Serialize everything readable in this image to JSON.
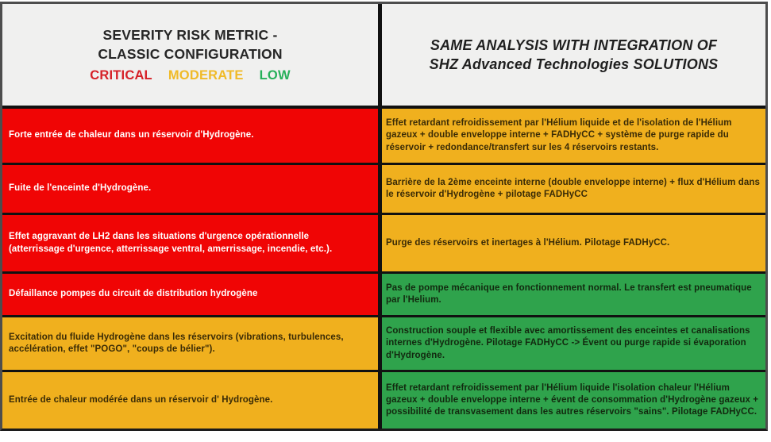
{
  "colors": {
    "critical": "#f00505",
    "moderate": "#f0b01e",
    "low": "#2fa34c"
  },
  "header": {
    "left": {
      "title_line1": "SEVERITY RISK METRIC  -",
      "title_line2": "CLASSIC CONFIGURATION",
      "legend": [
        {
          "label": "CRITICAL",
          "color": "#d62027"
        },
        {
          "label": "MODERATE",
          "color": "#f0ba28"
        },
        {
          "label": "LOW",
          "color": "#27b05a"
        }
      ]
    },
    "right": {
      "title_line1": "SAME ANALYSIS WITH INTEGRATION OF",
      "title_line2": "SHZ Advanced Technologies SOLUTIONS"
    }
  },
  "rows": [
    {
      "risk": "Forte entrée de chaleur dans un réservoir d'Hydrogène.",
      "risk_severity": "critical",
      "solution": "Effet retardant refroidissement par l'Hélium liquide et de l'isolation de l'Hélium gazeux + double enveloppe interne + FADHyCC + système de purge rapide du réservoir + redondance/transfert sur les 4 réservoirs restants.",
      "solution_severity": "moderate"
    },
    {
      "risk": "Fuite de l'enceinte d'Hydrogène.",
      "risk_severity": "critical",
      "solution": "Barrière de la 2ème enceinte interne (double enveloppe interne) +  flux d'Hélium dans le réservoir d'Hydrogène + pilotage FADHyCC",
      "solution_severity": "moderate"
    },
    {
      "risk": "Effet aggravant de LH2 dans les situations d'urgence opérationnelle (atterrissage d'urgence, atterrissage ventral, amerrissage, incendie, etc.).",
      "risk_severity": "critical",
      "solution": "Purge des réservoirs et inertages à l'Hélium. Pilotage FADHyCC.",
      "solution_severity": "moderate"
    },
    {
      "risk": "Défaillance pompes du circuit de distribution hydrogène",
      "risk_severity": "critical",
      "solution": "Pas de pompe mécanique en fonctionnement normal. Le transfert est  pneumatique par l'Helium.",
      "solution_severity": "low"
    },
    {
      "risk": "Excitation du fluide Hydrogène dans les réservoirs  (vibrations, turbulences, accélération, effet \"POGO\",  \"coups de bélier\").",
      "risk_severity": "moderate",
      "solution": "Construction souple et flexible avec amortissement des enceintes et canalisations internes d'Hydrogène. Pilotage FADHyCC -> Évent ou purge rapide si évaporation d'Hydrogène.",
      "solution_severity": "low"
    },
    {
      "risk": "Entrée de chaleur modérée dans un réservoir d' Hydrogène.",
      "risk_severity": "moderate",
      "solution": "Effet retardant refroidissement par l'Hélium liquide l'isolation chaleur l'Hélium gazeux + double enveloppe interne +  évent de consommation d'Hydrogène gazeux + possibilité de transvasement dans les autres réservoirs \"sains\". Pilotage FADHyCC.",
      "solution_severity": "low"
    }
  ]
}
